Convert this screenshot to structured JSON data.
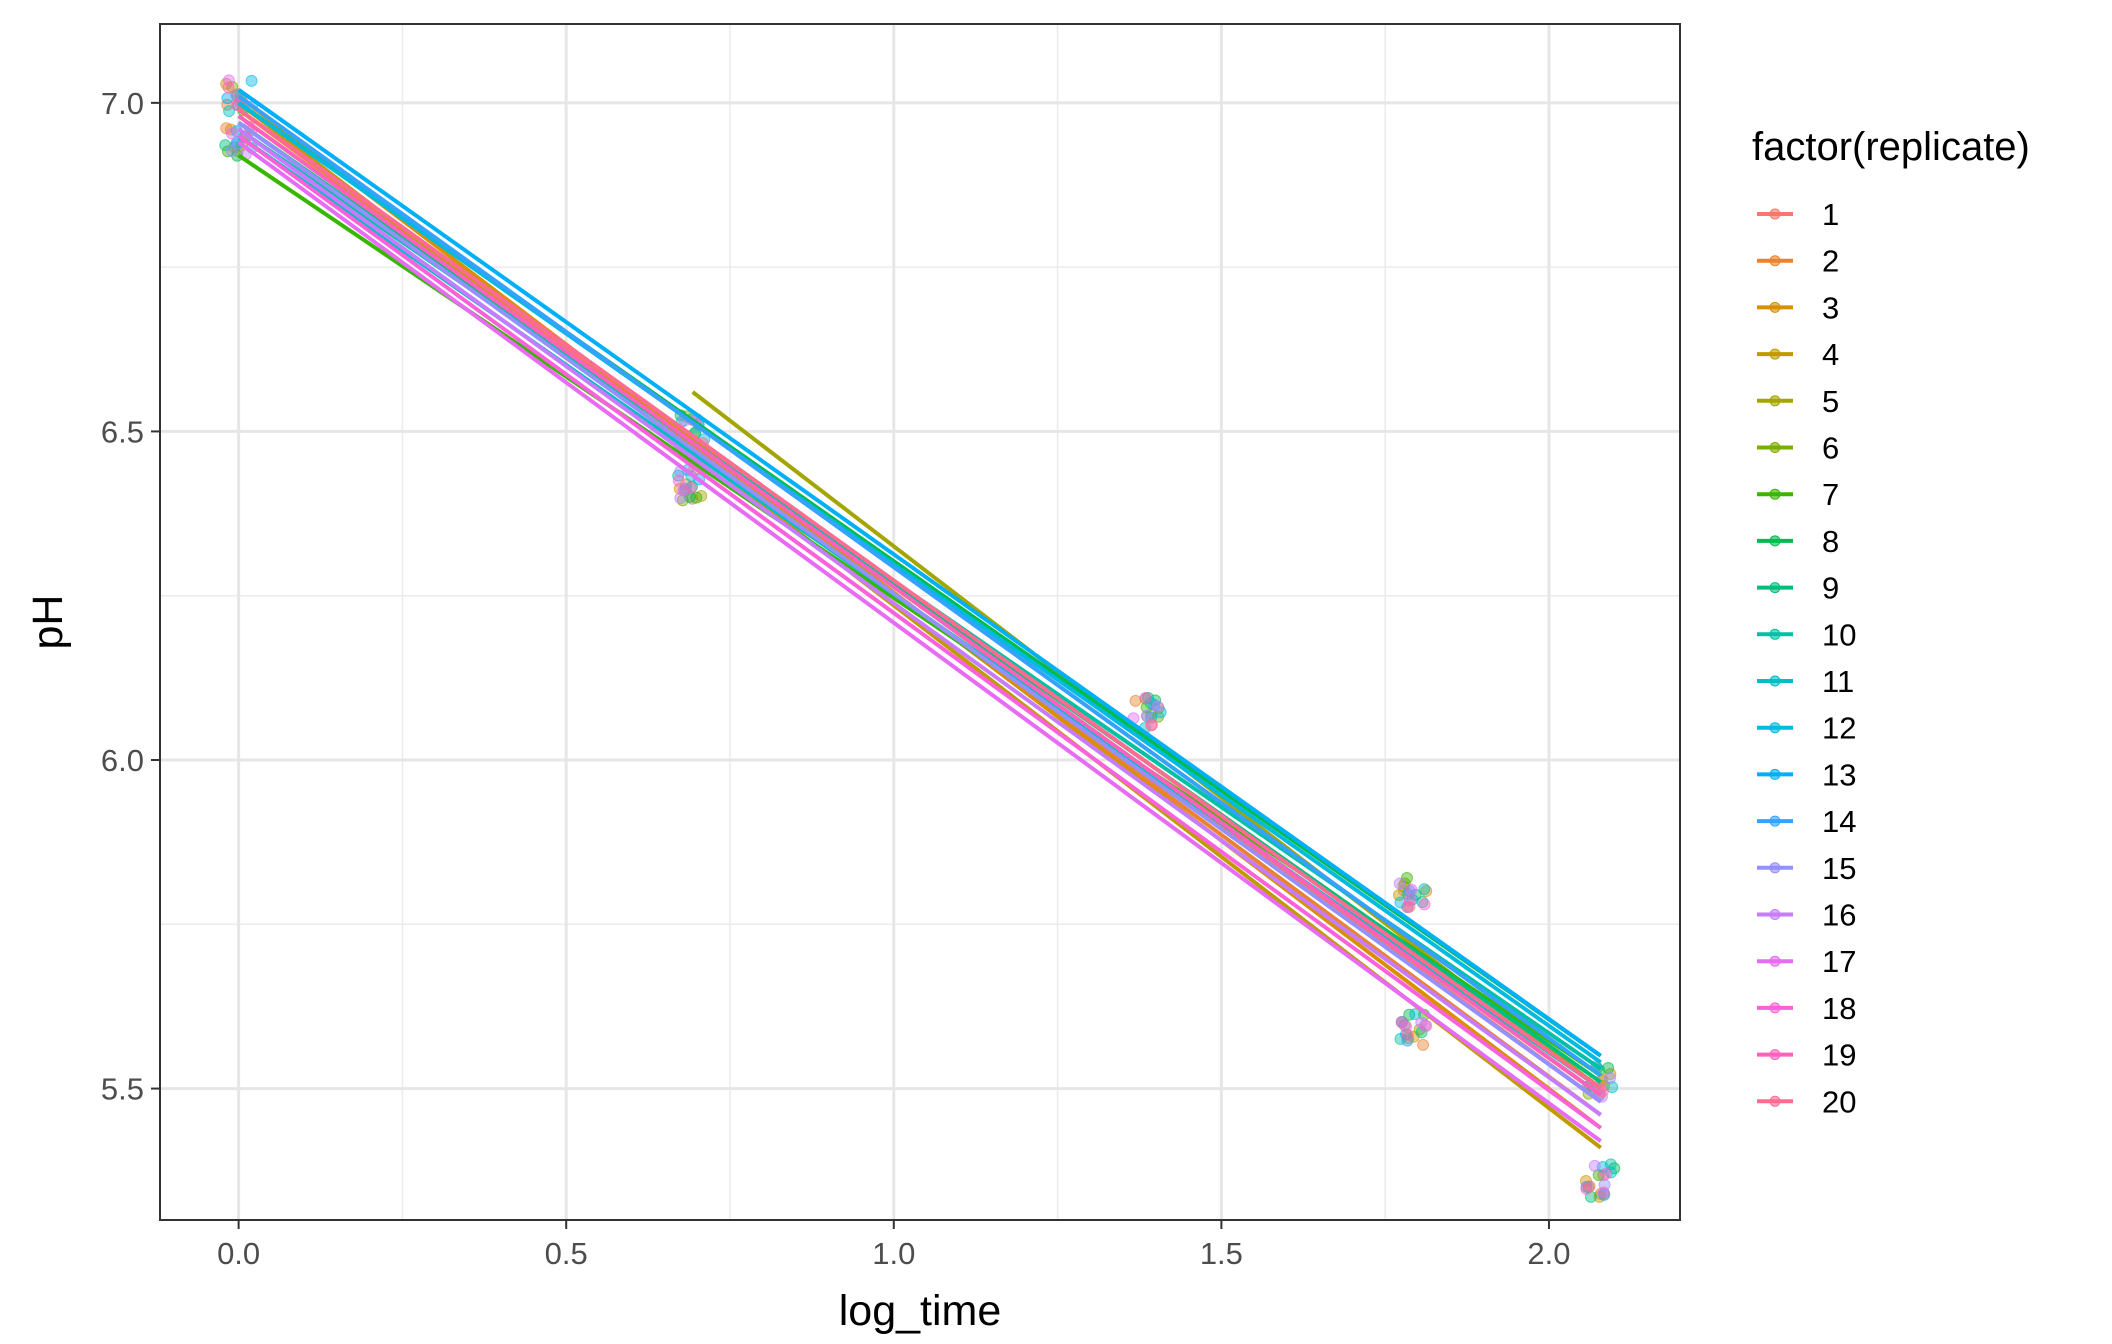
{
  "chart_data": {
    "type": "scatter",
    "xlabel": "log_time",
    "ylabel": "pH",
    "xlim": [
      -0.12,
      2.2
    ],
    "ylim": [
      5.3,
      7.12
    ],
    "x_ticks": [
      0.0,
      0.5,
      1.0,
      1.5,
      2.0
    ],
    "x_tick_labels": [
      "0.0",
      "0.5",
      "1.0",
      "1.5",
      "2.0"
    ],
    "y_ticks": [
      5.5,
      6.0,
      6.5,
      7.0
    ],
    "y_tick_labels": [
      "5.5",
      "6.0",
      "6.5",
      "7.0"
    ],
    "grid": true,
    "legend": {
      "title": "factor(replicate)",
      "position": "right",
      "entries": [
        "1",
        "2",
        "3",
        "4",
        "5",
        "6",
        "7",
        "8",
        "9",
        "10",
        "11",
        "12",
        "13",
        "14",
        "15",
        "16",
        "17",
        "18",
        "19",
        "20"
      ]
    },
    "colors": [
      "#F8766D",
      "#EA8331",
      "#D89000",
      "#C09B00",
      "#A3A500",
      "#7CAE00",
      "#39B600",
      "#00BB4E",
      "#00BF7D",
      "#00C1A3",
      "#00BFC4",
      "#00BAE0",
      "#00B0F6",
      "#35A2FF",
      "#9590FF",
      "#C77CFF",
      "#E76BF3",
      "#FA62DB",
      "#FF62BC",
      "#FF6C91"
    ],
    "time_points": [
      0.0,
      0.693,
      1.386,
      1.792,
      2.079
    ],
    "point_clusters": [
      {
        "x": 0.0,
        "y": [
          7.01,
          6.94
        ]
      },
      {
        "x": 0.693,
        "y": [
          6.5,
          6.42
        ]
      },
      {
        "x": 1.386,
        "y": [
          6.07
        ]
      },
      {
        "x": 1.792,
        "y": [
          5.8,
          5.59
        ]
      },
      {
        "x": 2.079,
        "y": [
          5.51,
          5.36
        ]
      }
    ],
    "fit_lines": [
      {
        "name": "1",
        "x": [
          0.0,
          2.079
        ],
        "y": [
          6.99,
          5.48
        ]
      },
      {
        "name": "2",
        "x": [
          0.0,
          2.079
        ],
        "y": [
          6.99,
          5.46
        ]
      },
      {
        "name": "3",
        "x": [
          0.0,
          2.079
        ],
        "y": [
          7.01,
          5.44
        ]
      },
      {
        "name": "4",
        "x": [
          0.0,
          2.079
        ],
        "y": [
          7.0,
          5.41
        ]
      },
      {
        "name": "5",
        "x": [
          0.693,
          2.079
        ],
        "y": [
          6.56,
          5.5
        ]
      },
      {
        "name": "6",
        "x": [
          0.0,
          2.079
        ],
        "y": [
          6.98,
          5.49
        ]
      },
      {
        "name": "7",
        "x": [
          0.0,
          2.079
        ],
        "y": [
          6.92,
          5.52
        ]
      },
      {
        "name": "8",
        "x": [
          0.0,
          2.079
        ],
        "y": [
          7.0,
          5.55
        ]
      },
      {
        "name": "9",
        "x": [
          0.0,
          2.079
        ],
        "y": [
          6.97,
          5.51
        ]
      },
      {
        "name": "10",
        "x": [
          0.0,
          2.079
        ],
        "y": [
          6.96,
          5.53
        ]
      },
      {
        "name": "11",
        "x": [
          0.0,
          2.079
        ],
        "y": [
          6.95,
          5.5
        ]
      },
      {
        "name": "12",
        "x": [
          0.0,
          2.079
        ],
        "y": [
          7.0,
          5.54
        ]
      },
      {
        "name": "13",
        "x": [
          0.0,
          2.079
        ],
        "y": [
          7.02,
          5.55
        ]
      },
      {
        "name": "14",
        "x": [
          0.0,
          2.079
        ],
        "y": [
          7.01,
          5.52
        ]
      },
      {
        "name": "15",
        "x": [
          0.0,
          2.079
        ],
        "y": [
          6.97,
          5.48
        ]
      },
      {
        "name": "16",
        "x": [
          0.0,
          2.079
        ],
        "y": [
          6.96,
          5.46
        ]
      },
      {
        "name": "17",
        "x": [
          0.0,
          2.079
        ],
        "y": [
          6.94,
          5.42
        ]
      },
      {
        "name": "18",
        "x": [
          0.0,
          2.079
        ],
        "y": [
          6.95,
          5.44
        ]
      },
      {
        "name": "19",
        "x": [
          0.0,
          2.079
        ],
        "y": [
          6.98,
          5.49
        ]
      },
      {
        "name": "20",
        "x": [
          0.0,
          2.079
        ],
        "y": [
          6.99,
          5.5
        ]
      }
    ]
  }
}
